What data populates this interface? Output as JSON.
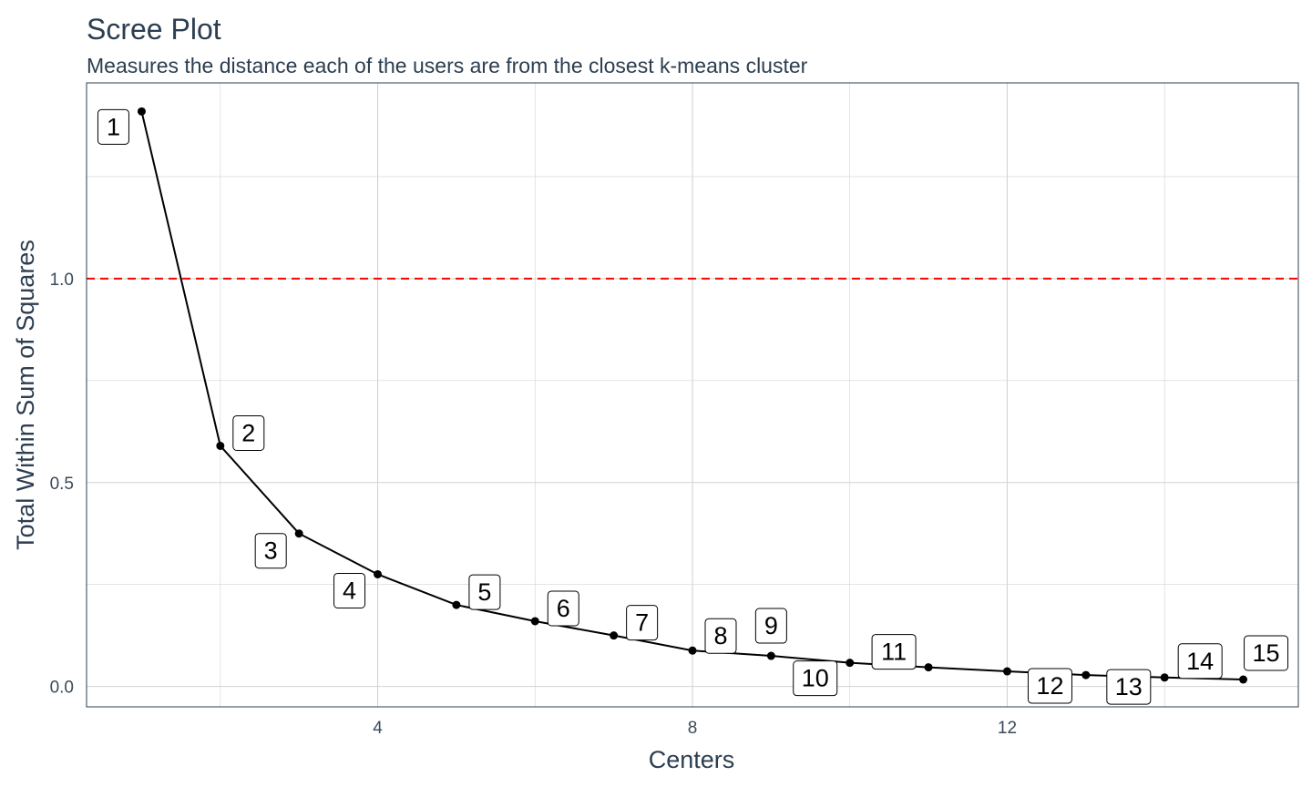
{
  "chart_data": {
    "type": "line",
    "title": "Scree Plot",
    "subtitle": "Measures the distance each of the users are from the closest k-means cluster",
    "xlabel": "Centers",
    "ylabel": "Total Within Sum of Squares",
    "xlim": [
      0.3,
      15.7
    ],
    "ylim": [
      -0.05,
      1.48
    ],
    "x_ticks": [
      4,
      8,
      12
    ],
    "y_ticks": [
      0.0,
      0.5,
      1.0
    ],
    "x_tick_labels": [
      "4",
      "8",
      "12"
    ],
    "y_tick_labels": [
      "0.0",
      "0.5",
      "1.0"
    ],
    "grid": true,
    "reference_line": {
      "y": 1.0,
      "style": "dashed",
      "color": "#ff0000"
    },
    "series": [
      {
        "color": "#000000",
        "x": [
          1,
          2,
          3,
          4,
          5,
          6,
          7,
          8,
          9,
          10,
          11,
          12,
          13,
          14,
          15
        ],
        "y": [
          1.41,
          0.59,
          0.375,
          0.275,
          0.2,
          0.16,
          0.125,
          0.088,
          0.075,
          0.058,
          0.047,
          0.037,
          0.028,
          0.022,
          0.017
        ],
        "labels": [
          "1",
          "2",
          "3",
          "4",
          "5",
          "6",
          "7",
          "8",
          "9",
          "10",
          "11",
          "12",
          "13",
          "14",
          "15"
        ]
      }
    ],
    "colors": {
      "text": "#2c3e50",
      "grid": "#d3d3d3",
      "panel_border": "#2c3e50",
      "line": "#000000",
      "reference": "#ff0000"
    }
  }
}
